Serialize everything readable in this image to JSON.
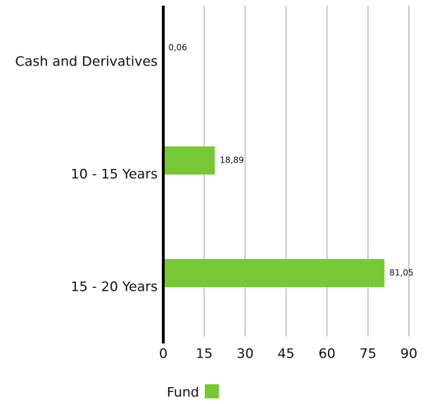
{
  "chart_data": {
    "type": "bar",
    "orientation": "horizontal",
    "categories": [
      "Cash and Derivatives",
      "10 - 15 Years",
      "15 - 20 Years"
    ],
    "series": [
      {
        "name": "Fund",
        "color": "#76c934",
        "values": [
          0.06,
          18.89,
          81.05
        ],
        "value_labels": [
          "0,06",
          "18,89",
          "81,05"
        ]
      }
    ],
    "xlim": [
      0,
      90
    ],
    "xticks": [
      0,
      15,
      30,
      45,
      60,
      75,
      90
    ],
    "grid": true,
    "legend": "bottom"
  }
}
